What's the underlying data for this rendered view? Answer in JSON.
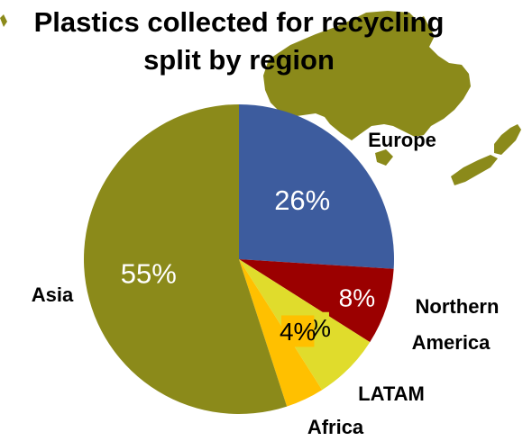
{
  "chart_data": {
    "type": "pie",
    "title": [
      "Plastics collected for recycling",
      "split by region"
    ],
    "slices": [
      {
        "name": "Europe",
        "value": 26,
        "label": "26%",
        "color": "#3d5c9e"
      },
      {
        "name": "Northern America",
        "value": 8,
        "label": "8%",
        "color": "#9b0000"
      },
      {
        "name": "LATAM",
        "value": 7,
        "label": "7%",
        "color": "#e0dc2c"
      },
      {
        "name": "Africa",
        "value": 4,
        "label": "4%",
        "color": "#ffc000"
      },
      {
        "name": "Asia",
        "value": 55,
        "label": "55%",
        "color": "#8b8a1a"
      }
    ],
    "start_angle_deg": 0,
    "direction": "clockwise"
  },
  "background": {
    "map_color": "#8b8a1a",
    "depicts": "map-australia-new-zealand"
  }
}
